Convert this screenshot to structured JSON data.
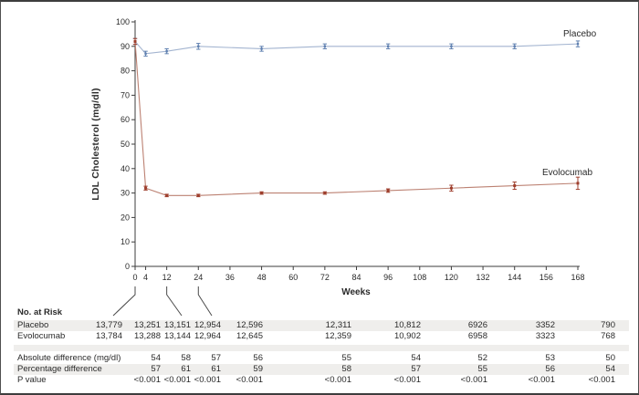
{
  "chart_data": {
    "type": "line",
    "title": "",
    "xlabel": "Weeks",
    "ylabel": "LDL Cholesterol (mg/dl)",
    "xlim": [
      0,
      168
    ],
    "ylim": [
      0,
      100
    ],
    "x_ticks": [
      0,
      4,
      12,
      24,
      36,
      48,
      60,
      72,
      84,
      96,
      108,
      120,
      132,
      144,
      156,
      168
    ],
    "y_ticks": [
      0,
      10,
      20,
      30,
      40,
      50,
      60,
      70,
      80,
      90,
      100
    ],
    "grid": false,
    "legend_position": "inline-labels",
    "x": [
      0,
      4,
      12,
      24,
      48,
      72,
      96,
      120,
      144,
      168
    ],
    "series": [
      {
        "name": "Placebo",
        "line_color": "#a3b4d0",
        "marker_color": "#5f80b0",
        "values": [
          92,
          87,
          88,
          90,
          89,
          90,
          90,
          90,
          90,
          91
        ],
        "errors": [
          1.2,
          1.0,
          1.0,
          1.2,
          1.0,
          1.0,
          1.0,
          1.0,
          1.0,
          1.2
        ]
      },
      {
        "name": "Evolocumab",
        "line_color": "#bc8172",
        "marker_color": "#9e3e2c",
        "values": [
          92,
          32,
          29,
          29,
          30,
          30,
          31,
          32,
          33,
          34
        ],
        "errors": [
          1.2,
          0.8,
          0.5,
          0.5,
          0.5,
          0.5,
          0.7,
          1.2,
          1.5,
          2.5
        ]
      }
    ]
  },
  "risk_table": {
    "heading": "No. at Risk",
    "columns_weeks": [
      0,
      4,
      12,
      24,
      48,
      72,
      96,
      120,
      144,
      168
    ],
    "connectors": [
      {
        "week": 0,
        "col": 0
      },
      {
        "week": 12,
        "col": 2
      },
      {
        "week": 24,
        "col": 3
      }
    ],
    "rows": [
      {
        "label": "Placebo",
        "values": [
          "13,779",
          "13,251",
          "13,151",
          "12,954",
          "12,596",
          "12,311",
          "10,812",
          "6926",
          "3352",
          "790"
        ]
      },
      {
        "label": "Evolocumab",
        "values": [
          "13,784",
          "13,288",
          "13,144",
          "12,964",
          "12,645",
          "12,359",
          "10,902",
          "6958",
          "3323",
          "768"
        ]
      }
    ],
    "stats_rows": [
      {
        "label": "Absolute difference (mg/dl)",
        "values": [
          "",
          "54",
          "58",
          "57",
          "56",
          "55",
          "54",
          "52",
          "53",
          "50"
        ]
      },
      {
        "label": "Percentage difference",
        "values": [
          "",
          "57",
          "61",
          "61",
          "59",
          "58",
          "57",
          "55",
          "56",
          "54"
        ]
      },
      {
        "label": "P value",
        "values": [
          "",
          "<0.001",
          "<0.001",
          "<0.001",
          "<0.001",
          "<0.001",
          "<0.001",
          "<0.001",
          "<0.001",
          "<0.001"
        ]
      }
    ]
  },
  "colors": {
    "axis": "#3c3c3c",
    "text": "#2a2a2a",
    "table_stripe": "#efeeec",
    "figure_border": "#4f4f4f",
    "placebo_line": "#a3b4d0",
    "placebo_marker": "#5f80b0",
    "evolocumab_line": "#bc8172",
    "evolocumab_marker": "#9e3e2c"
  }
}
